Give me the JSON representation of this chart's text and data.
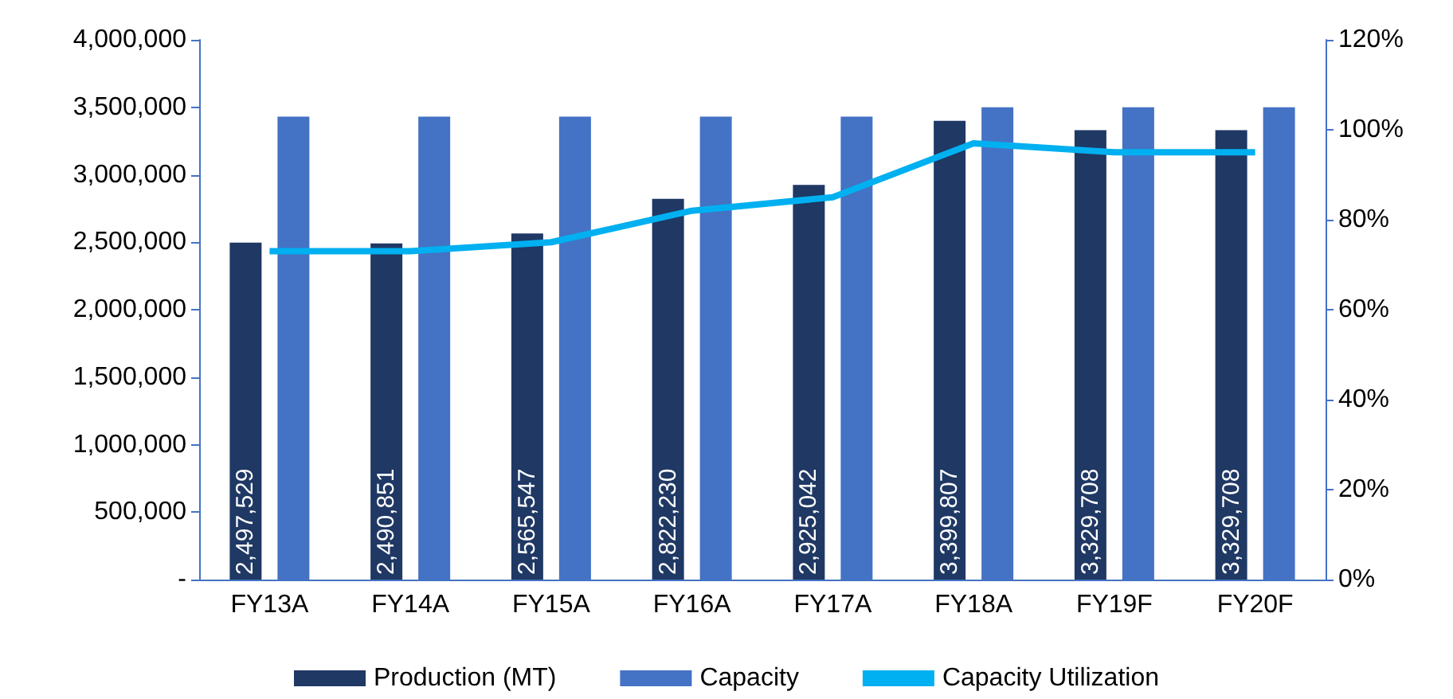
{
  "chart_data": {
    "type": "bar",
    "categories": [
      "FY13A",
      "FY14A",
      "FY15A",
      "FY16A",
      "FY17A",
      "FY18A",
      "FY19F",
      "FY20F"
    ],
    "series": [
      {
        "name": "Production (MT)",
        "color": "#1f3864",
        "values": [
          2497529,
          2490851,
          2565547,
          2822230,
          2925042,
          3399807,
          3329708,
          3329708
        ],
        "value_labels": [
          "2,497,529",
          "2,490,851",
          "2,565,547",
          "2,822,230",
          "2,925,042",
          "3,399,807",
          "3,329,708",
          "3,329,708"
        ]
      },
      {
        "name": "Capacity",
        "color": "#4472c4",
        "values": [
          3430000,
          3430000,
          3430000,
          3430000,
          3430000,
          3500000,
          3500000,
          3500000
        ]
      },
      {
        "name": "Capacity Utilization",
        "type": "line",
        "axis": "y2",
        "color": "#00b0f0",
        "values": [
          73,
          73,
          75,
          82,
          85,
          97,
          95,
          95
        ]
      }
    ],
    "ylim": [
      0,
      4000000
    ],
    "yticks": [
      {
        "value": 0,
        "label": "-"
      },
      {
        "value": 500000,
        "label": "500,000"
      },
      {
        "value": 1000000,
        "label": "1,000,000"
      },
      {
        "value": 1500000,
        "label": "1,500,000"
      },
      {
        "value": 2000000,
        "label": "2,000,000"
      },
      {
        "value": 2500000,
        "label": "2,500,000"
      },
      {
        "value": 3000000,
        "label": "3,000,000"
      },
      {
        "value": 3500000,
        "label": "3,500,000"
      },
      {
        "value": 4000000,
        "label": "4,000,000"
      }
    ],
    "y2lim": [
      0,
      120
    ],
    "y2ticks": [
      {
        "value": 0,
        "label": "0%"
      },
      {
        "value": 20,
        "label": "20%"
      },
      {
        "value": 40,
        "label": "40%"
      },
      {
        "value": 60,
        "label": "60%"
      },
      {
        "value": 80,
        "label": "80%"
      },
      {
        "value": 100,
        "label": "100%"
      },
      {
        "value": 120,
        "label": "120%"
      }
    ],
    "legend": "bottom",
    "grid": false,
    "marker": "none"
  }
}
